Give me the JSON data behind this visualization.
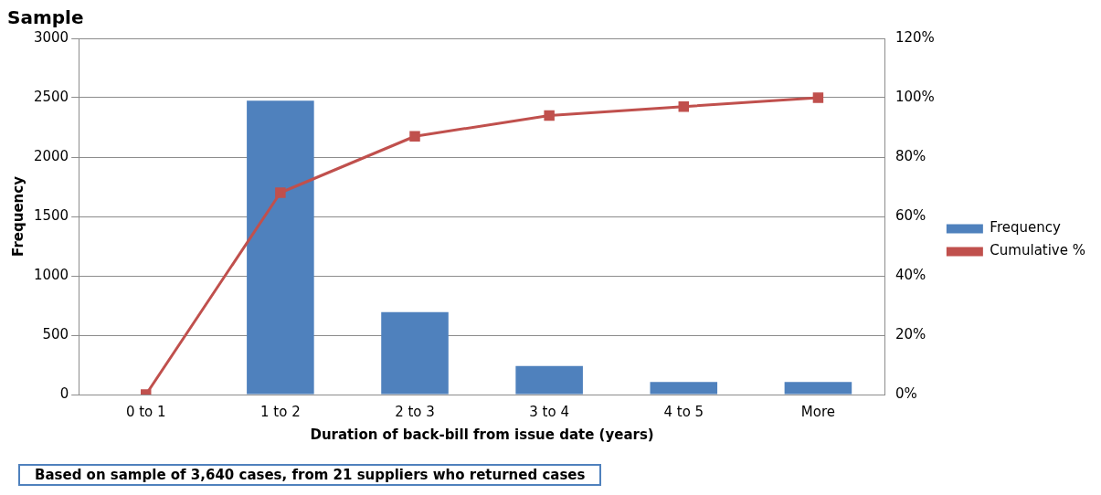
{
  "chart_data": {
    "type": "bar",
    "title": "Sample",
    "xlabel": "Duration of back-bill from issue date (years)",
    "ylabel": "Frequency",
    "categories": [
      "0 to 1",
      "1 to 2",
      "2 to 3",
      "3 to 4",
      "4 to 5",
      "More"
    ],
    "series": [
      {
        "name": "Frequency",
        "color": "#4f81bd",
        "values": [
          0,
          2475,
          695,
          240,
          105,
          105
        ]
      },
      {
        "name": "Cumulative %",
        "type": "line",
        "axis": "y2",
        "color": "#c0504d",
        "marker": "square",
        "values": [
          0,
          68,
          87,
          94,
          97,
          100
        ]
      }
    ],
    "ylim": [
      0,
      3000
    ],
    "yticks": [
      0,
      500,
      1000,
      1500,
      2000,
      2500,
      3000
    ],
    "y2lim": [
      0,
      120
    ],
    "y2ticks": [
      {
        "value": 0,
        "label": "0%"
      },
      {
        "value": 20,
        "label": "20%"
      },
      {
        "value": 40,
        "label": "40%"
      },
      {
        "value": 60,
        "label": "60%"
      },
      {
        "value": 80,
        "label": "80%"
      },
      {
        "value": 100,
        "label": "100%"
      },
      {
        "value": 120,
        "label": "120%"
      }
    ],
    "grid": "y",
    "legend": "right",
    "annotations": [
      "Based on sample of 3,640 cases, from 21 suppliers who returned cases"
    ]
  }
}
